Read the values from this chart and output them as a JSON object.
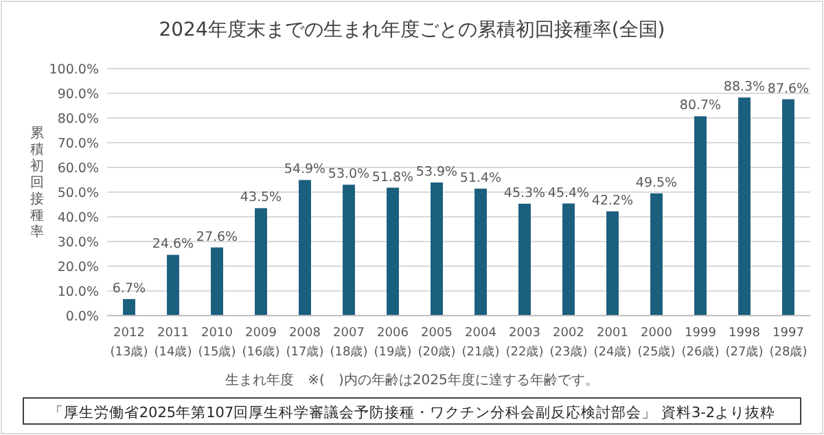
{
  "chart_data": {
    "type": "bar",
    "title": "2024年度末までの生まれ年度ごとの累積初回接種率(全国)",
    "xlabel": "生まれ年度　※(　)内の年齢は2025年度に達する年齢です。",
    "ylabel": "累積初回接種率",
    "annotations": [
      "「厚生労働省2025年第107回厚生科学審議会予防接種・ワクチン分科会副反応検討部会」 資料3-2より抜粋"
    ],
    "categories": [
      "2012\n(13歳)",
      "2011\n(14歳)",
      "2010\n(15歳)",
      "2009\n(16歳)",
      "2008\n(17歳)",
      "2007\n(18歳)",
      "2006\n(19歳)",
      "2005\n(20歳)",
      "2004\n(21歳)",
      "2003\n(22歳)",
      "2002\n(23歳)",
      "2001\n(24歳)",
      "2000\n(25歳)",
      "1999\n(26歳)",
      "1998\n(27歳)",
      "1997\n(28歳)"
    ],
    "values": [
      6.7,
      24.6,
      27.6,
      43.5,
      54.9,
      53.0,
      51.8,
      53.9,
      51.4,
      45.3,
      45.4,
      42.2,
      49.5,
      80.7,
      88.3,
      87.6
    ],
    "value_labels": [
      "6.7%",
      "24.6%",
      "27.6%",
      "43.5%",
      "54.9%",
      "53.0%",
      "51.8%",
      "53.9%",
      "51.4%",
      "45.3%",
      "45.4%",
      "42.2%",
      "49.5%",
      "80.7%",
      "88.3%",
      "87.6%"
    ],
    "color": "#1b5f7e",
    "ylim": [
      0,
      100
    ],
    "yticks": [
      {
        "value": 0,
        "label": "0.0%"
      },
      {
        "value": 10,
        "label": "10.0%"
      },
      {
        "value": 20,
        "label": "20.0%"
      },
      {
        "value": 30,
        "label": "30.0%"
      },
      {
        "value": 40,
        "label": "40.0%"
      },
      {
        "value": 50,
        "label": "50.0%"
      },
      {
        "value": 60,
        "label": "60.0%"
      },
      {
        "value": 70,
        "label": "70.0%"
      },
      {
        "value": 80,
        "label": "80.0%"
      },
      {
        "value": 90,
        "label": "90.0%"
      },
      {
        "value": 100,
        "label": "100.0%"
      }
    ],
    "grid": true
  }
}
